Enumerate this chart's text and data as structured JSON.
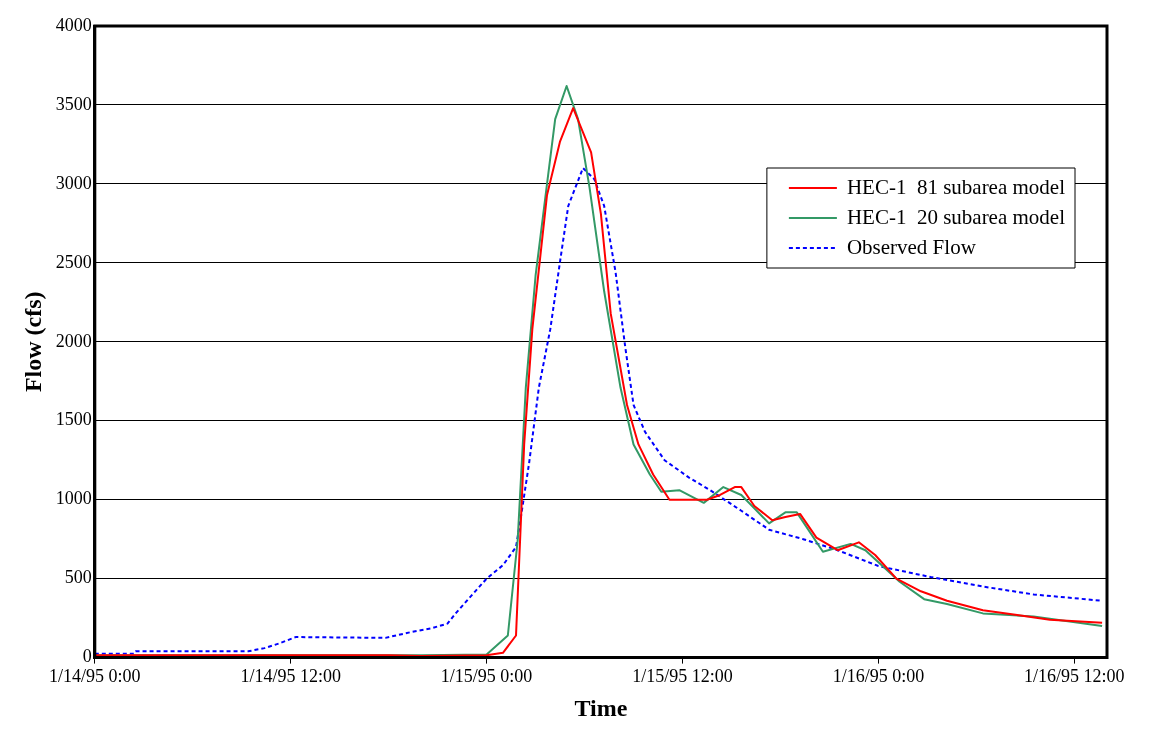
{
  "chart_data": {
    "type": "line",
    "xlabel": "Time",
    "ylabel": "Flow (cfs)",
    "xlim": [
      "1995-01-14T00:00",
      "1995-01-16T14:00"
    ],
    "xticks": [
      {
        "value": "1995-01-14T00:00",
        "label": "1/14/95 0:00"
      },
      {
        "value": "1995-01-14T12:00",
        "label": "1/14/95 12:00"
      },
      {
        "value": "1995-01-15T00:00",
        "label": "1/15/95 0:00"
      },
      {
        "value": "1995-01-15T12:00",
        "label": "1/15/95 12:00"
      },
      {
        "value": "1995-01-16T00:00",
        "label": "1/16/95 0:00"
      },
      {
        "value": "1995-01-16T12:00",
        "label": "1/16/95 12:00"
      }
    ],
    "ylim": [
      0,
      4000
    ],
    "yticks": [
      0,
      500,
      1000,
      1500,
      2000,
      2500,
      3000,
      3500,
      4000
    ],
    "grid": "y",
    "legend": "top right",
    "marker": "none",
    "series": [
      {
        "name": "HEC-1  81 subarea model",
        "color": "#ff0000",
        "line_style": "solid",
        "x": [
          "1995-01-14T00:00",
          "1995-01-14T18:00",
          "1995-01-14T20:00",
          "1995-01-15T00:00",
          "1995-01-15T01:00",
          "1995-01-15T01:48",
          "1995-01-15T02:18",
          "1995-01-15T02:48",
          "1995-01-15T03:42",
          "1995-01-15T04:30",
          "1995-01-15T05:18",
          "1995-01-15T06:24",
          "1995-01-15T07:00",
          "1995-01-15T07:36",
          "1995-01-15T08:36",
          "1995-01-15T09:18",
          "1995-01-15T10:12",
          "1995-01-15T11:12",
          "1995-01-15T13:30",
          "1995-01-15T14:18",
          "1995-01-15T15:12",
          "1995-01-15T15:36",
          "1995-01-15T16:24",
          "1995-01-15T17:30",
          "1995-01-15T18:18",
          "1995-01-15T19:12",
          "1995-01-15T20:12",
          "1995-01-15T21:30",
          "1995-01-15T22:48",
          "1995-01-15T23:48",
          "1995-01-16T01:06",
          "1995-01-16T02:36",
          "1995-01-16T04:12",
          "1995-01-16T06:24",
          "1995-01-16T08:30",
          "1995-01-16T10:30",
          "1995-01-16T13:42"
        ],
        "values": [
          15,
          15,
          10,
          15,
          30,
          140,
          1350,
          2080,
          2930,
          3270,
          3480,
          3200,
          2810,
          2180,
          1600,
          1350,
          1160,
          1000,
          1000,
          1030,
          1080,
          1080,
          960,
          870,
          890,
          910,
          760,
          680,
          730,
          650,
          500,
          420,
          360,
          300,
          270,
          240,
          220
        ]
      },
      {
        "name": "HEC-1  20 subarea model",
        "color": "#339966",
        "line_style": "solid",
        "x": [
          "1995-01-14T00:00",
          "1995-01-14T20:00",
          "1995-01-15T00:00",
          "1995-01-15T01:18",
          "1995-01-15T01:54",
          "1995-01-15T02:24",
          "1995-01-15T03:00",
          "1995-01-15T03:42",
          "1995-01-15T04:12",
          "1995-01-15T04:54",
          "1995-01-15T05:36",
          "1995-01-15T06:18",
          "1995-01-15T07:12",
          "1995-01-15T08:12",
          "1995-01-15T09:00",
          "1995-01-15T10:00",
          "1995-01-15T10:42",
          "1995-01-15T11:48",
          "1995-01-15T13:18",
          "1995-01-15T14:30",
          "1995-01-15T15:36",
          "1995-01-15T17:18",
          "1995-01-15T18:18",
          "1995-01-15T19:00",
          "1995-01-15T20:36",
          "1995-01-15T22:18",
          "1995-01-15T23:12",
          "1995-01-16T01:18",
          "1995-01-16T02:48",
          "1995-01-16T04:12",
          "1995-01-16T06:24",
          "1995-01-16T09:30",
          "1995-01-16T13:42"
        ],
        "values": [
          15,
          15,
          20,
          140,
          740,
          1710,
          2420,
          3000,
          3410,
          3620,
          3410,
          2980,
          2320,
          1710,
          1350,
          1160,
          1050,
          1060,
          980,
          1080,
          1030,
          850,
          920,
          920,
          670,
          720,
          680,
          480,
          370,
          340,
          280,
          260,
          200
        ]
      },
      {
        "name": "Observed Flow",
        "color": "#0000ff",
        "line_style": "dashed",
        "x": [
          "1995-01-14T00:00",
          "1995-01-14T02:24",
          "1995-01-14T02:30",
          "1995-01-14T09:24",
          "1995-01-14T10:24",
          "1995-01-14T11:18",
          "1995-01-14T12:18",
          "1995-01-14T17:48",
          "1995-01-14T19:18",
          "1995-01-14T20:36",
          "1995-01-14T21:36",
          "1995-01-14T22:06",
          "1995-01-14T22:42",
          "1995-01-15T00:00",
          "1995-01-15T01:00",
          "1995-01-15T01:48",
          "1995-01-15T02:06",
          "1995-01-15T02:36",
          "1995-01-15T03:12",
          "1995-01-15T03:54",
          "1995-01-15T04:30",
          "1995-01-15T05:00",
          "1995-01-15T05:54",
          "1995-01-15T06:36",
          "1995-01-15T07:12",
          "1995-01-15T07:54",
          "1995-01-15T08:30",
          "1995-01-15T09:00",
          "1995-01-15T09:42",
          "1995-01-15T10:54",
          "1995-01-15T12:24",
          "1995-01-15T13:42",
          "1995-01-15T15:36",
          "1995-01-15T17:18",
          "1995-01-15T19:24",
          "1995-01-15T21:30",
          "1995-01-16T00:00",
          "1995-01-16T03:12",
          "1995-01-16T06:24",
          "1995-01-16T09:30",
          "1995-01-16T13:42"
        ],
        "values": [
          25,
          25,
          40,
          40,
          60,
          90,
          130,
          125,
          160,
          185,
          215,
          280,
          350,
          500,
          585,
          700,
          890,
          1230,
          1710,
          2080,
          2510,
          2860,
          3100,
          3030,
          2860,
          2440,
          1960,
          1600,
          1430,
          1250,
          1140,
          1060,
          930,
          810,
          750,
          680,
          580,
          510,
          450,
          400,
          360
        ]
      }
    ]
  }
}
